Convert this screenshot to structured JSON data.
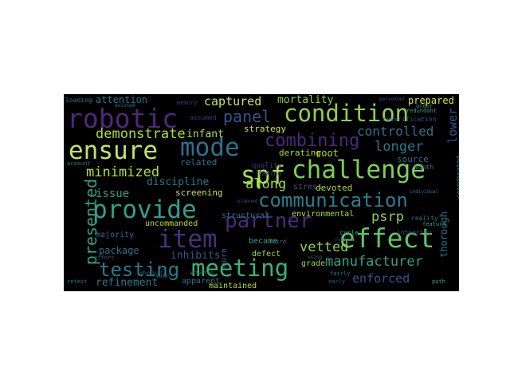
{
  "wordcloud": {
    "words": [
      {
        "text": "robotic",
        "color": "#4b2a7a"
      },
      {
        "text": "condition",
        "color": "#8fd14a"
      },
      {
        "text": "ensure",
        "color": "#c8e064"
      },
      {
        "text": "mode",
        "color": "#2f6f8e"
      },
      {
        "text": "combining",
        "color": "#4b2a7a"
      },
      {
        "text": "spf",
        "color": "#a9dc5a"
      },
      {
        "text": "challenge",
        "color": "#7ed05a"
      },
      {
        "text": "communication",
        "color": "#2c7d8e"
      },
      {
        "text": "partner",
        "color": "#4b2a7a"
      },
      {
        "text": "provide",
        "color": "#2fa08a"
      },
      {
        "text": "item",
        "color": "#46327e"
      },
      {
        "text": "effect",
        "color": "#5ec962"
      },
      {
        "text": "meeting",
        "color": "#38b27a"
      },
      {
        "text": "testing",
        "color": "#2a788e"
      },
      {
        "text": "presented",
        "color": "#2fa08a"
      },
      {
        "text": "demonstrate",
        "color": "#b5de2b"
      },
      {
        "text": "panel",
        "color": "#3b528b"
      },
      {
        "text": "captured",
        "color": "#c8e064"
      },
      {
        "text": "mortality",
        "color": "#8fd14a"
      },
      {
        "text": "prepared",
        "color": "#d9e53a"
      },
      {
        "text": "longer",
        "color": "#2a788e"
      },
      {
        "text": "controlled",
        "color": "#2c728e"
      },
      {
        "text": "lower",
        "color": "#3b528b"
      },
      {
        "text": "minimized",
        "color": "#b5de2b"
      },
      {
        "text": "infant",
        "color": "#a9dc5a"
      },
      {
        "text": "strategy",
        "color": "#d9e53a"
      },
      {
        "text": "derating",
        "color": "#b5de2b"
      },
      {
        "text": "root",
        "color": "#b5de2b"
      },
      {
        "text": "source",
        "color": "#31688e"
      },
      {
        "text": "discipline",
        "color": "#2a788e"
      },
      {
        "text": "related",
        "color": "#2c728e"
      },
      {
        "text": "quality",
        "color": "#46327e"
      },
      {
        "text": "taking",
        "color": "#46327e"
      },
      {
        "text": "issue",
        "color": "#2fa08a"
      },
      {
        "text": "along",
        "color": "#a0da39"
      },
      {
        "text": "stress",
        "color": "#3b528b"
      },
      {
        "text": "devoted",
        "color": "#a0da39"
      },
      {
        "text": "screening",
        "color": "#c8e064"
      },
      {
        "text": "psrp",
        "color": "#8fd14a"
      },
      {
        "text": "environmental",
        "color": "#b5de2b"
      },
      {
        "text": "structural",
        "color": "#2a788e"
      },
      {
        "text": "manufacturer",
        "color": "#2fa08a"
      },
      {
        "text": "uncommanded",
        "color": "#b5de2b"
      },
      {
        "text": "majority",
        "color": "#31688e"
      },
      {
        "text": "vetted",
        "color": "#8fd14a"
      },
      {
        "text": "package",
        "color": "#2c728e"
      },
      {
        "text": "inhibits",
        "color": "#3b528b"
      },
      {
        "text": "became",
        "color": "#2fa08a"
      },
      {
        "text": "defect",
        "color": "#a0da39"
      },
      {
        "text": "grade",
        "color": "#a0da39"
      },
      {
        "text": "thorough",
        "color": "#2c728e"
      },
      {
        "text": "apparent",
        "color": "#2c728e"
      },
      {
        "text": "burn",
        "color": "#2c728e"
      },
      {
        "text": "enforced",
        "color": "#3b528b"
      },
      {
        "text": "refinement",
        "color": "#2a788e"
      },
      {
        "text": "maintained",
        "color": "#b5de2b"
      },
      {
        "text": "attention",
        "color": "#2a788e"
      },
      {
        "text": "integrity",
        "color": "#3b528b"
      },
      {
        "text": "cycle",
        "color": "#2fa08a"
      },
      {
        "text": "reverification",
        "color": "#3b528b"
      },
      {
        "text": "redundant",
        "color": "#2fa08a"
      },
      {
        "text": "coordinated",
        "color": "#2fa08a"
      },
      {
        "text": "early",
        "color": "#3b528b"
      },
      {
        "text": "reality",
        "color": "#2c728e"
      },
      {
        "text": "feature",
        "color": "#2fa08a"
      },
      {
        "text": "month",
        "color": "#2a788e"
      },
      {
        "text": "assumed",
        "color": "#46327e"
      },
      {
        "text": "memory",
        "color": "#46327e"
      },
      {
        "text": "order",
        "color": "#2fa08a"
      },
      {
        "text": "loading",
        "color": "#2c728e"
      },
      {
        "text": "existed",
        "color": "#2a788e"
      },
      {
        "text": "account",
        "color": "#2a788e"
      },
      {
        "text": "retest",
        "color": "#2a788e"
      },
      {
        "text": "effort",
        "color": "#3b528b"
      },
      {
        "text": "physical",
        "color": "#2a788e"
      },
      {
        "text": "model",
        "color": "#2a788e"
      },
      {
        "text": "third",
        "color": "#2a788e"
      },
      {
        "text": "passing",
        "color": "#46327e"
      },
      {
        "text": "using",
        "color": "#2c728e"
      },
      {
        "text": "personnel",
        "color": "#3b528b"
      },
      {
        "text": "individual",
        "color": "#2c728e"
      },
      {
        "text": "path",
        "color": "#2fa08a"
      },
      {
        "text": "fairly",
        "color": "#2a788e"
      },
      {
        "text": "planned",
        "color": "#3b528b"
      },
      {
        "text": "affected",
        "color": "#2a788e"
      }
    ]
  }
}
